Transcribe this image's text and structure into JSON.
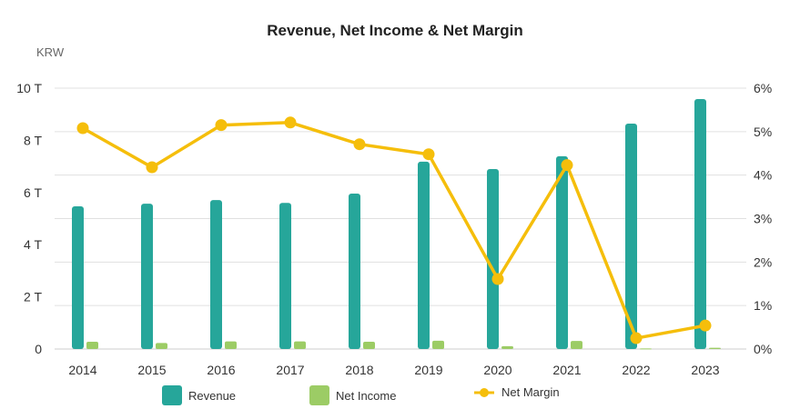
{
  "title": "Revenue, Net Income & Net Margin",
  "unit_label": "KRW",
  "colors": {
    "revenue": "#26a69a",
    "net_income": "#9ccc65",
    "net_margin": "#f5be0b"
  },
  "chart_data": {
    "type": "bar",
    "title": "Revenue, Net Income & Net Margin",
    "xlabel": "",
    "ylabel": "KRW",
    "y2label": "Net Margin (%)",
    "categories": [
      "2014",
      "2015",
      "2016",
      "2017",
      "2018",
      "2019",
      "2020",
      "2021",
      "2022",
      "2023"
    ],
    "series": [
      {
        "name": "Revenue",
        "type": "bar",
        "axis": "left",
        "unit": "T KRW",
        "values": [
          5.47,
          5.57,
          5.71,
          5.6,
          5.96,
          7.18,
          6.9,
          7.39,
          8.64,
          9.58
        ]
      },
      {
        "name": "Net Income",
        "type": "bar",
        "axis": "left",
        "unit": "T KRW",
        "values": [
          0.28,
          0.23,
          0.29,
          0.29,
          0.28,
          0.32,
          0.11,
          0.31,
          0.02,
          0.05
        ]
      },
      {
        "name": "Net Margin",
        "type": "line",
        "axis": "right",
        "unit": "%",
        "values": [
          5.08,
          4.18,
          5.15,
          5.21,
          4.71,
          4.48,
          1.61,
          4.23,
          0.25,
          0.54
        ]
      }
    ],
    "ylim": [
      0,
      10
    ],
    "y2lim": [
      0,
      6
    ],
    "yticks": [
      "0",
      "2 T",
      "4 T",
      "6 T",
      "8 T",
      "10 T"
    ],
    "y2ticks": [
      "0%",
      "1%",
      "2%",
      "3%",
      "4%",
      "5%",
      "6%"
    ],
    "grid": true,
    "legend_position": "bottom"
  },
  "legend": [
    {
      "label": "Revenue"
    },
    {
      "label": "Net Income"
    },
    {
      "label": "Net Margin"
    }
  ]
}
